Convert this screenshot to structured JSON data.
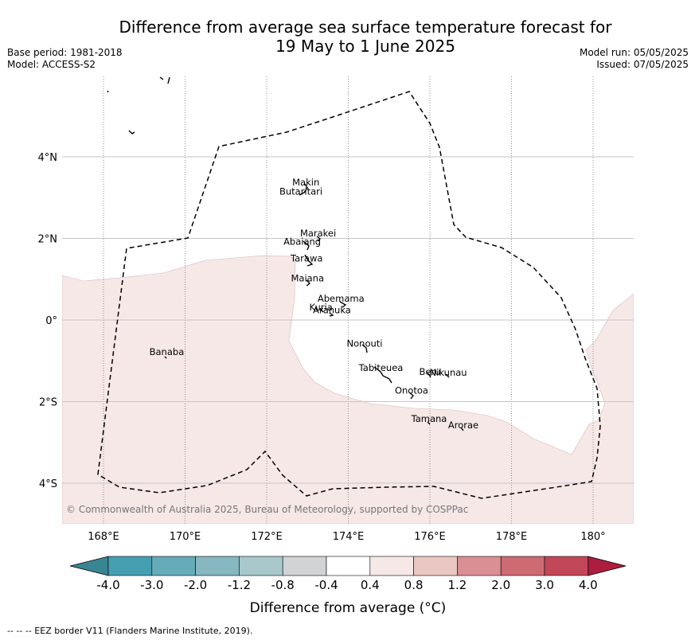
{
  "title": {
    "line1": "Difference from average sea surface temperature forecast for",
    "line2": "19 May to 1 June 2025"
  },
  "meta": {
    "base_period": "Base period: 1981-2018",
    "model": "Model: ACCESS-S2",
    "model_run": "Model run: 05/05/2025",
    "issued": "Issued: 07/05/2025"
  },
  "map": {
    "lon_range": [
      167.0,
      181.0
    ],
    "lat_range": [
      -5.0,
      6.0
    ],
    "lon_ticks": [
      {
        "value": 168,
        "label": "168°E"
      },
      {
        "value": 170,
        "label": "170°E"
      },
      {
        "value": 172,
        "label": "172°E"
      },
      {
        "value": 174,
        "label": "174°E"
      },
      {
        "value": 176,
        "label": "176°E"
      },
      {
        "value": 178,
        "label": "178°E"
      },
      {
        "value": 180,
        "label": "180°"
      }
    ],
    "lat_ticks": [
      {
        "value": 4,
        "label": "4°N"
      },
      {
        "value": 2,
        "label": "2°N"
      },
      {
        "value": 0,
        "label": "0°"
      },
      {
        "value": -2,
        "label": "2°S"
      },
      {
        "value": -4,
        "label": "4°S"
      }
    ],
    "copyright": "© Commonwealth of Australia 2025, Bureau of Meteorology, supported by COSPPac",
    "islands": [
      {
        "name": "Makin",
        "lon": 172.96,
        "lat": 3.3
      },
      {
        "name": "Butaritari",
        "lon": 172.84,
        "lat": 3.07
      },
      {
        "name": "Marakei",
        "lon": 173.26,
        "lat": 2.05
      },
      {
        "name": "Abaiang",
        "lon": 172.87,
        "lat": 1.84
      },
      {
        "name": "Tarawa",
        "lon": 172.98,
        "lat": 1.43
      },
      {
        "name": "Maiana",
        "lon": 173.0,
        "lat": 0.95
      },
      {
        "name": "Abemama",
        "lon": 173.82,
        "lat": 0.45
      },
      {
        "name": "Kuria",
        "lon": 173.33,
        "lat": 0.23
      },
      {
        "name": "Aranuka",
        "lon": 173.6,
        "lat": 0.17
      },
      {
        "name": "Nonouti",
        "lon": 174.4,
        "lat": -0.65
      },
      {
        "name": "Banaba",
        "lon": 169.55,
        "lat": -0.86
      },
      {
        "name": "Tabiteuea",
        "lon": 174.8,
        "lat": -1.25
      },
      {
        "name": "Beru",
        "lon": 176.0,
        "lat": -1.35
      },
      {
        "name": "Nikunau",
        "lon": 176.45,
        "lat": -1.37
      },
      {
        "name": "Onotoa",
        "lon": 175.55,
        "lat": -1.8
      },
      {
        "name": "Tamana",
        "lon": 175.98,
        "lat": -2.5
      },
      {
        "name": "Arorae",
        "lon": 176.82,
        "lat": -2.65
      }
    ],
    "anomaly_region_color": "#f5e8e7"
  },
  "colorbar": {
    "bins": [
      {
        "color": "#3a8592"
      },
      {
        "color": "#469fb1"
      },
      {
        "color": "#66abb9"
      },
      {
        "color": "#87b7c0"
      },
      {
        "color": "#a9c8cb"
      },
      {
        "color": "#d2d3d4"
      },
      {
        "color": "#ffffff"
      },
      {
        "color": "#f5e8e7"
      },
      {
        "color": "#eac7c3"
      },
      {
        "color": "#d98f94"
      },
      {
        "color": "#ce6a72"
      },
      {
        "color": "#c24758"
      },
      {
        "color": "#ad1d3f"
      }
    ],
    "tick_labels": [
      "-4.0",
      "-3.0",
      "-2.0",
      "-1.2",
      "-0.8",
      "-0.4",
      "0.4",
      "0.8",
      "1.2",
      "2.0",
      "3.0",
      "4.0"
    ],
    "label": "Difference from average (°C)"
  },
  "footer": {
    "eez_note": "-- -- -- EEZ border V11 (Flanders Marine Institute, 2019)."
  }
}
